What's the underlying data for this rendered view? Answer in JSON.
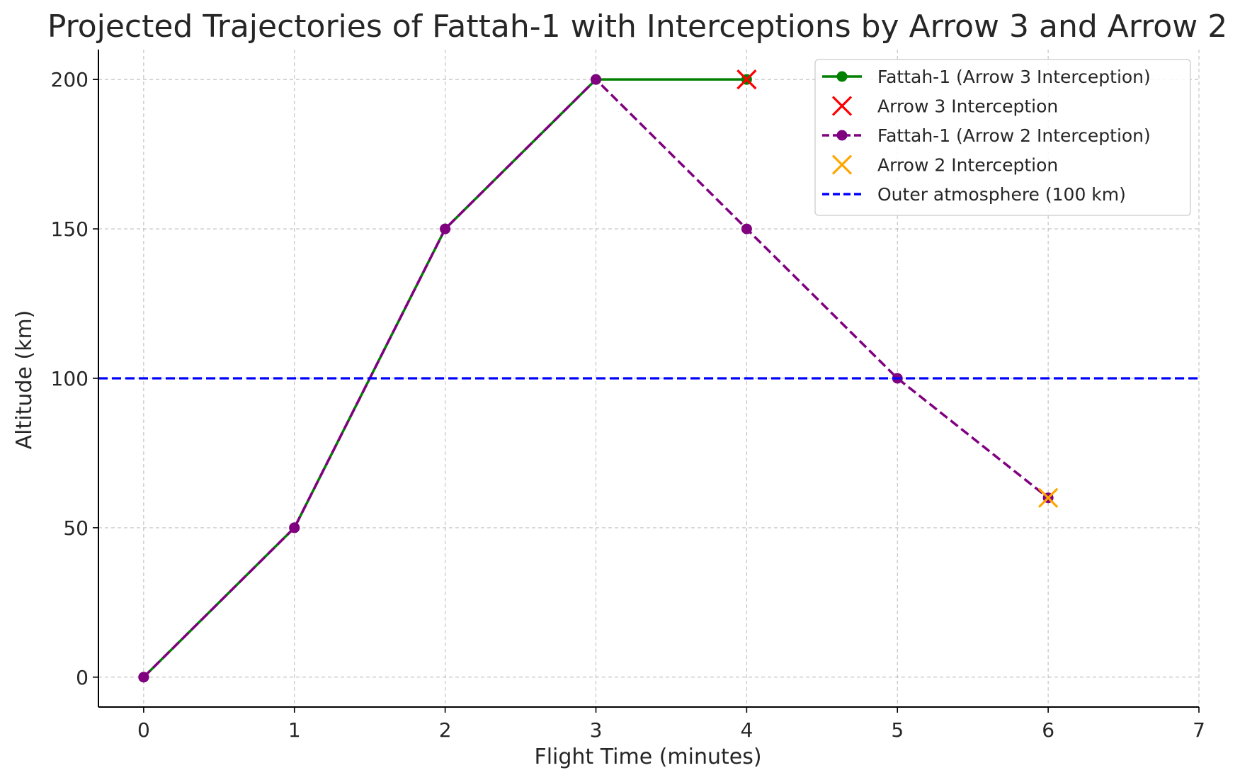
{
  "chart_data": {
    "type": "line",
    "title": "Projected Trajectories of Fattah-1 with Interceptions by Arrow 3 and Arrow 2",
    "xlabel": "Flight Time (minutes)",
    "ylabel": "Altitude (km)",
    "xlim": [
      -0.3,
      7
    ],
    "ylim": [
      -10,
      210
    ],
    "xticks": [
      0,
      1,
      2,
      3,
      4,
      5,
      6,
      7
    ],
    "yticks": [
      0,
      50,
      100,
      150,
      200
    ],
    "grid": true,
    "legend_position": "top-right",
    "series": [
      {
        "name": "Fattah-1 (Arrow 3 Interception)",
        "kind": "line",
        "color": "#008000",
        "line_style": "solid",
        "marker": "circle",
        "x": [
          0,
          1,
          2,
          3,
          4
        ],
        "y": [
          0,
          50,
          150,
          200,
          200
        ]
      },
      {
        "name": "Arrow 3 Interception",
        "kind": "scatter",
        "color": "#ff0000",
        "marker": "x",
        "x": [
          4
        ],
        "y": [
          200
        ]
      },
      {
        "name": "Fattah-1 (Arrow 2 Interception)",
        "kind": "line",
        "color": "#800080",
        "line_style": "dashed",
        "marker": "circle",
        "x": [
          0,
          1,
          2,
          3,
          4,
          5,
          6
        ],
        "y": [
          0,
          50,
          150,
          200,
          150,
          100,
          60
        ]
      },
      {
        "name": "Arrow 2 Interception",
        "kind": "scatter",
        "color": "#ffa500",
        "marker": "x",
        "x": [
          6
        ],
        "y": [
          60
        ]
      },
      {
        "name": "Outer atmosphere (100 km)",
        "kind": "hline",
        "color": "#0000ff",
        "line_style": "dashed",
        "y": 100
      }
    ]
  }
}
